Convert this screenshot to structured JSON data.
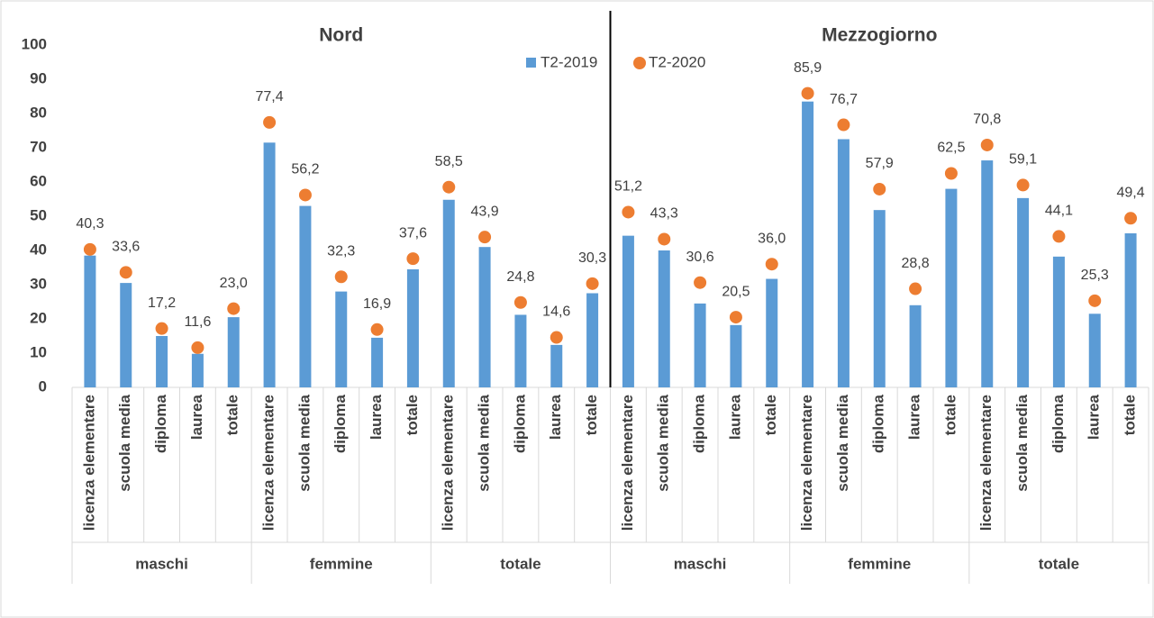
{
  "chart_data": {
    "type": "bar",
    "panels": [
      "Nord",
      "Mezzogiorno"
    ],
    "groups": [
      "maschi",
      "femmine",
      "totale",
      "maschi",
      "femmine",
      "totale"
    ],
    "categories": [
      "licenza elementare",
      "scuola media",
      "diploma",
      "laurea",
      "totale",
      "licenza elementare",
      "scuola media",
      "diploma",
      "laurea",
      "totale",
      "licenza elementare",
      "scuola media",
      "diploma",
      "laurea",
      "totale",
      "licenza elementare",
      "scuola media",
      "diploma",
      "laurea",
      "totale",
      "licenza elementare",
      "scuola media",
      "diploma",
      "laurea",
      "totale",
      "licenza elementare",
      "scuola media",
      "diploma",
      "laurea",
      "totale"
    ],
    "series": [
      {
        "name": "T2-2019",
        "color": "#5b9bd5",
        "mark": "bar",
        "values": [
          38.5,
          30.5,
          15,
          9.8,
          20.5,
          71.5,
          53,
          28,
          14.5,
          34.5,
          54.8,
          41,
          21.2,
          12.4,
          27.5,
          44.3,
          40,
          24.5,
          18.2,
          31.7,
          83.5,
          72.5,
          51.8,
          24,
          58,
          66.3,
          55.3,
          38.2,
          21.5,
          45
        ]
      },
      {
        "name": "T2-2020",
        "color": "#ed7d31",
        "mark": "dot",
        "values": [
          40.3,
          33.6,
          17.2,
          11.6,
          23.0,
          77.4,
          56.2,
          32.3,
          16.9,
          37.6,
          58.5,
          43.9,
          24.8,
          14.6,
          30.3,
          51.2,
          43.3,
          30.6,
          20.5,
          36.0,
          85.9,
          76.7,
          57.9,
          28.8,
          62.5,
          70.8,
          59.1,
          44.1,
          25.3,
          49.4
        ],
        "value_labels": [
          "40,3",
          "33,6",
          "17,2",
          "11,6",
          "23,0",
          "77,4",
          "56,2",
          "32,3",
          "16,9",
          "37,6",
          "58,5",
          "43,9",
          "24,8",
          "14,6",
          "30,3",
          "51,2",
          "43,3",
          "30,6",
          "20,5",
          "36,0",
          "85,9",
          "76,7",
          "57,9",
          "28,8",
          "62,5",
          "70,8",
          "59,1",
          "44,1",
          "25,3",
          "49,4"
        ]
      }
    ],
    "ylim": [
      0,
      100
    ],
    "yticks": [
      0,
      10,
      20,
      30,
      40,
      50,
      60,
      70,
      80,
      90,
      100
    ],
    "grid": false
  }
}
